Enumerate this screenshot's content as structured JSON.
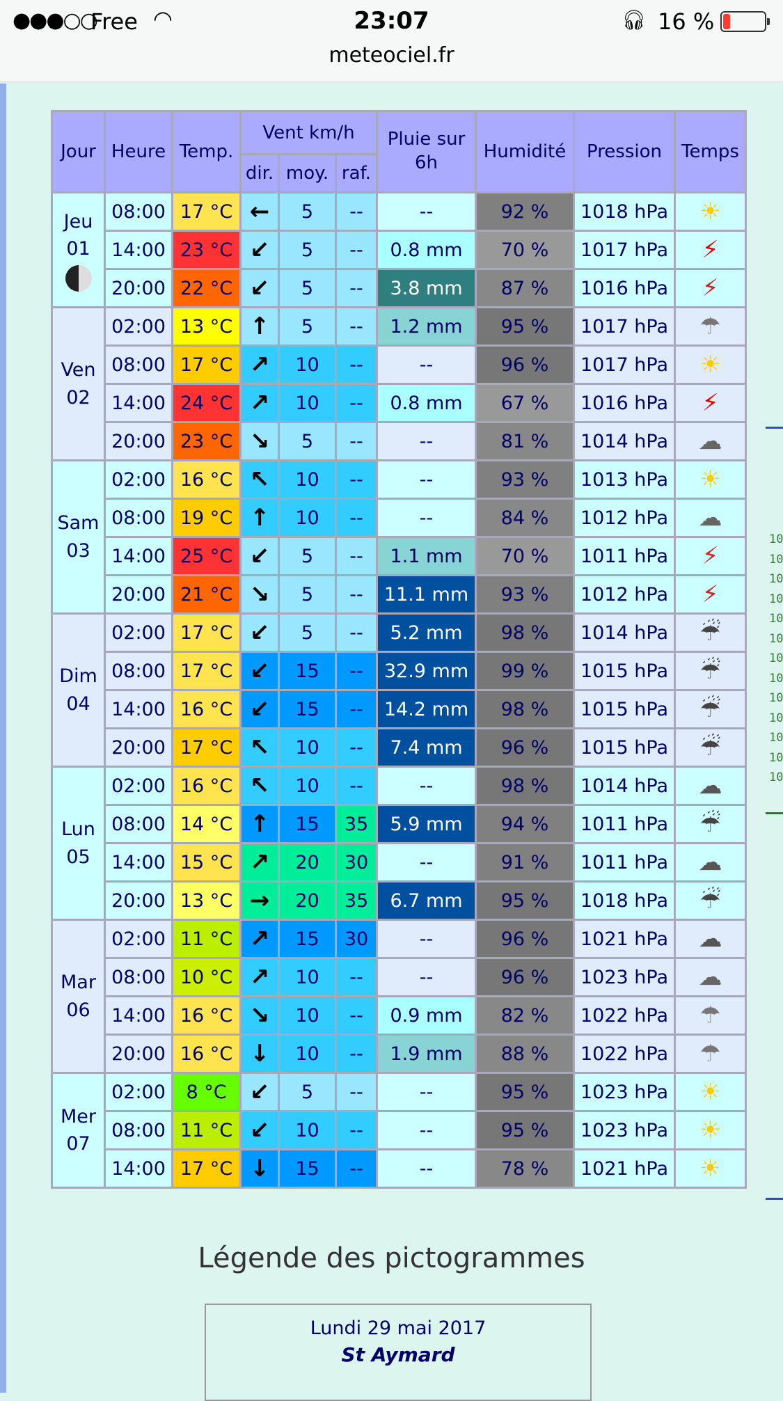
{
  "status_bar": {
    "signal": "●●●○○",
    "carrier": "Free",
    "time": "23:07",
    "url": "meteociel.fr",
    "battery": "16 %",
    "battery_level": 16
  },
  "table": {
    "headers": {
      "jour": "Jour",
      "heure": "Heure",
      "temp": "Temp.",
      "vent": "Vent km/h",
      "dir": "dir.",
      "moy": "moy.",
      "raf": "raf.",
      "pluie": "Pluie sur 6h",
      "humidite": "Humidité",
      "pression": "Pression",
      "temps": "Temps"
    },
    "days": [
      {
        "name": "Jeu",
        "num": "01",
        "bg": "#ccffff",
        "moon": true,
        "rows": [
          [
            "08:00",
            "17 °C",
            "#ffe34f",
            "←",
            "5",
            "#99e6ff",
            "--",
            "#99e6ff",
            "--",
            "",
            "92 %",
            "#808080",
            "1018 hPa",
            "sun"
          ],
          [
            "14:00",
            "23 °C",
            "#ff3333",
            "↙",
            "5",
            "#99e6ff",
            "--",
            "#99e6ff",
            "0.8 mm",
            "#aaffff",
            "70 %",
            "#999999",
            "1017 hPa",
            "storm-sun"
          ],
          [
            "20:00",
            "22 °C",
            "#ff6600",
            "↙",
            "5",
            "#99e6ff",
            "--",
            "#99e6ff",
            "3.8 mm",
            "#2f7f7f",
            "87 %",
            "#888888",
            "1016 hPa",
            "storm"
          ]
        ]
      },
      {
        "name": "Ven",
        "num": "02",
        "bg": "#e0ecfc",
        "rows": [
          [
            "02:00",
            "13 °C",
            "#ffff00",
            "↑",
            "5",
            "#99e6ff",
            "--",
            "#99e6ff",
            "1.2 mm",
            "#88d4d4",
            "95 %",
            "#777777",
            "1017 hPa",
            "rain-sun"
          ],
          [
            "08:00",
            "17 °C",
            "#ffcc00",
            "↗",
            "10",
            "#33ccff",
            "--",
            "#33ccff",
            "--",
            "",
            "96 %",
            "#777777",
            "1017 hPa",
            "sun"
          ],
          [
            "14:00",
            "24 °C",
            "#ff3333",
            "↗",
            "10",
            "#33ccff",
            "--",
            "#33ccff",
            "0.8 mm",
            "#aaffff",
            "67 %",
            "#999999",
            "1016 hPa",
            "storm-sun"
          ],
          [
            "20:00",
            "23 °C",
            "#ff6600",
            "↘",
            "5",
            "#99e6ff",
            "--",
            "#99e6ff",
            "--",
            "",
            "81 %",
            "#888888",
            "1014 hPa",
            "sun-cloud"
          ]
        ]
      },
      {
        "name": "Sam",
        "num": "03",
        "bg": "#ccffff",
        "rows": [
          [
            "02:00",
            "16 °C",
            "#ffe34f",
            "↖",
            "10",
            "#33ccff",
            "--",
            "#33ccff",
            "--",
            "",
            "93 %",
            "#808080",
            "1013 hPa",
            "sun"
          ],
          [
            "08:00",
            "19 °C",
            "#ffcc00",
            "↑",
            "10",
            "#33ccff",
            "--",
            "#33ccff",
            "--",
            "",
            "84 %",
            "#888888",
            "1012 hPa",
            "sun-cloud"
          ],
          [
            "14:00",
            "25 °C",
            "#ff3333",
            "↙",
            "5",
            "#99e6ff",
            "--",
            "#99e6ff",
            "1.1 mm",
            "#88d4d4",
            "70 %",
            "#999999",
            "1011 hPa",
            "storm"
          ],
          [
            "20:00",
            "21 °C",
            "#ff6600",
            "↘",
            "5",
            "#99e6ff",
            "--",
            "#99e6ff",
            "11.1 mm",
            "#0050a0",
            "93 %",
            "#808080",
            "1012 hPa",
            "storm"
          ]
        ]
      },
      {
        "name": "Dim",
        "num": "04",
        "bg": "#e0ecfc",
        "rows": [
          [
            "02:00",
            "17 °C",
            "#ffe34f",
            "↙",
            "5",
            "#99e6ff",
            "--",
            "#99e6ff",
            "5.2 mm",
            "#0050a0",
            "98 %",
            "#777777",
            "1014 hPa",
            "heavy-rain"
          ],
          [
            "08:00",
            "17 °C",
            "#ffe34f",
            "↙",
            "15",
            "#0099ff",
            "--",
            "#0099ff",
            "32.9 mm",
            "#0050a0",
            "99 %",
            "#777777",
            "1015 hPa",
            "heavy-rain"
          ],
          [
            "14:00",
            "16 °C",
            "#ffe34f",
            "↙",
            "15",
            "#0099ff",
            "--",
            "#0099ff",
            "14.2 mm",
            "#0050a0",
            "98 %",
            "#777777",
            "1015 hPa",
            "heavy-rain"
          ],
          [
            "20:00",
            "17 °C",
            "#ffcc00",
            "↖",
            "10",
            "#33ccff",
            "--",
            "#33ccff",
            "7.4 mm",
            "#0050a0",
            "96 %",
            "#777777",
            "1015 hPa",
            "heavy-rain"
          ]
        ]
      },
      {
        "name": "Lun",
        "num": "05",
        "bg": "#ccffff",
        "rows": [
          [
            "02:00",
            "16 °C",
            "#ffe34f",
            "↖",
            "10",
            "#33ccff",
            "--",
            "#33ccff",
            "--",
            "",
            "98 %",
            "#777777",
            "1014 hPa",
            "cloud"
          ],
          [
            "08:00",
            "14 °C",
            "#ffff66",
            "↑",
            "15",
            "#0099ff",
            "35",
            "#00ee99",
            "5.9 mm",
            "#0050a0",
            "94 %",
            "#808080",
            "1011 hPa",
            "heavy-rain"
          ],
          [
            "14:00",
            "15 °C",
            "#ffe34f",
            "↗",
            "20",
            "#00ee99",
            "30",
            "#00ee99",
            "--",
            "",
            "91 %",
            "#808080",
            "1011 hPa",
            "cloud"
          ],
          [
            "20:00",
            "13 °C",
            "#ffff66",
            "→",
            "20",
            "#00ee99",
            "35",
            "#00ee99",
            "6.7 mm",
            "#0050a0",
            "95 %",
            "#777777",
            "1018 hPa",
            "heavy-rain"
          ]
        ]
      },
      {
        "name": "Mar",
        "num": "06",
        "bg": "#e0ecfc",
        "rows": [
          [
            "02:00",
            "11 °C",
            "#bbee00",
            "↗",
            "15",
            "#0099ff",
            "30",
            "#0099ff",
            "--",
            "",
            "96 %",
            "#777777",
            "1021 hPa",
            "cloud"
          ],
          [
            "08:00",
            "10 °C",
            "#ccee00",
            "↗",
            "10",
            "#33ccff",
            "--",
            "#33ccff",
            "--",
            "",
            "96 %",
            "#777777",
            "1023 hPa",
            "sun-cloud"
          ],
          [
            "14:00",
            "16 °C",
            "#ffe34f",
            "↘",
            "10",
            "#33ccff",
            "--",
            "#33ccff",
            "0.9 mm",
            "#aaffff",
            "82 %",
            "#888888",
            "1022 hPa",
            "rain-sun"
          ],
          [
            "20:00",
            "16 °C",
            "#ffe34f",
            "↓",
            "10",
            "#33ccff",
            "--",
            "#33ccff",
            "1.9 mm",
            "#88d4d4",
            "88 %",
            "#888888",
            "1022 hPa",
            "rain-sun"
          ]
        ]
      },
      {
        "name": "Mer",
        "num": "07",
        "bg": "#ccffff",
        "rows": [
          [
            "02:00",
            "8 °C",
            "#66ff00",
            "↙",
            "5",
            "#99e6ff",
            "--",
            "#99e6ff",
            "--",
            "",
            "95 %",
            "#777777",
            "1023 hPa",
            "sun"
          ],
          [
            "08:00",
            "11 °C",
            "#bbee00",
            "↙",
            "10",
            "#33ccff",
            "--",
            "#33ccff",
            "--",
            "",
            "95 %",
            "#777777",
            "1023 hPa",
            "sun"
          ],
          [
            "14:00",
            "17 °C",
            "#ffcc00",
            "↓",
            "15",
            "#0099ff",
            "--",
            "#0099ff",
            "--",
            "",
            "78 %",
            "#888888",
            "1021 hPa",
            "sun-small-cloud"
          ]
        ]
      }
    ]
  },
  "side_labels": [
    "10",
    "10",
    "10",
    "10",
    "10",
    "10",
    "10",
    "10",
    "10",
    "10",
    "10",
    "10",
    "10"
  ],
  "legend": {
    "title": "Légende des pictogrammes",
    "date": "Lundi 29 mai 2017",
    "saint": "St Aymard"
  }
}
